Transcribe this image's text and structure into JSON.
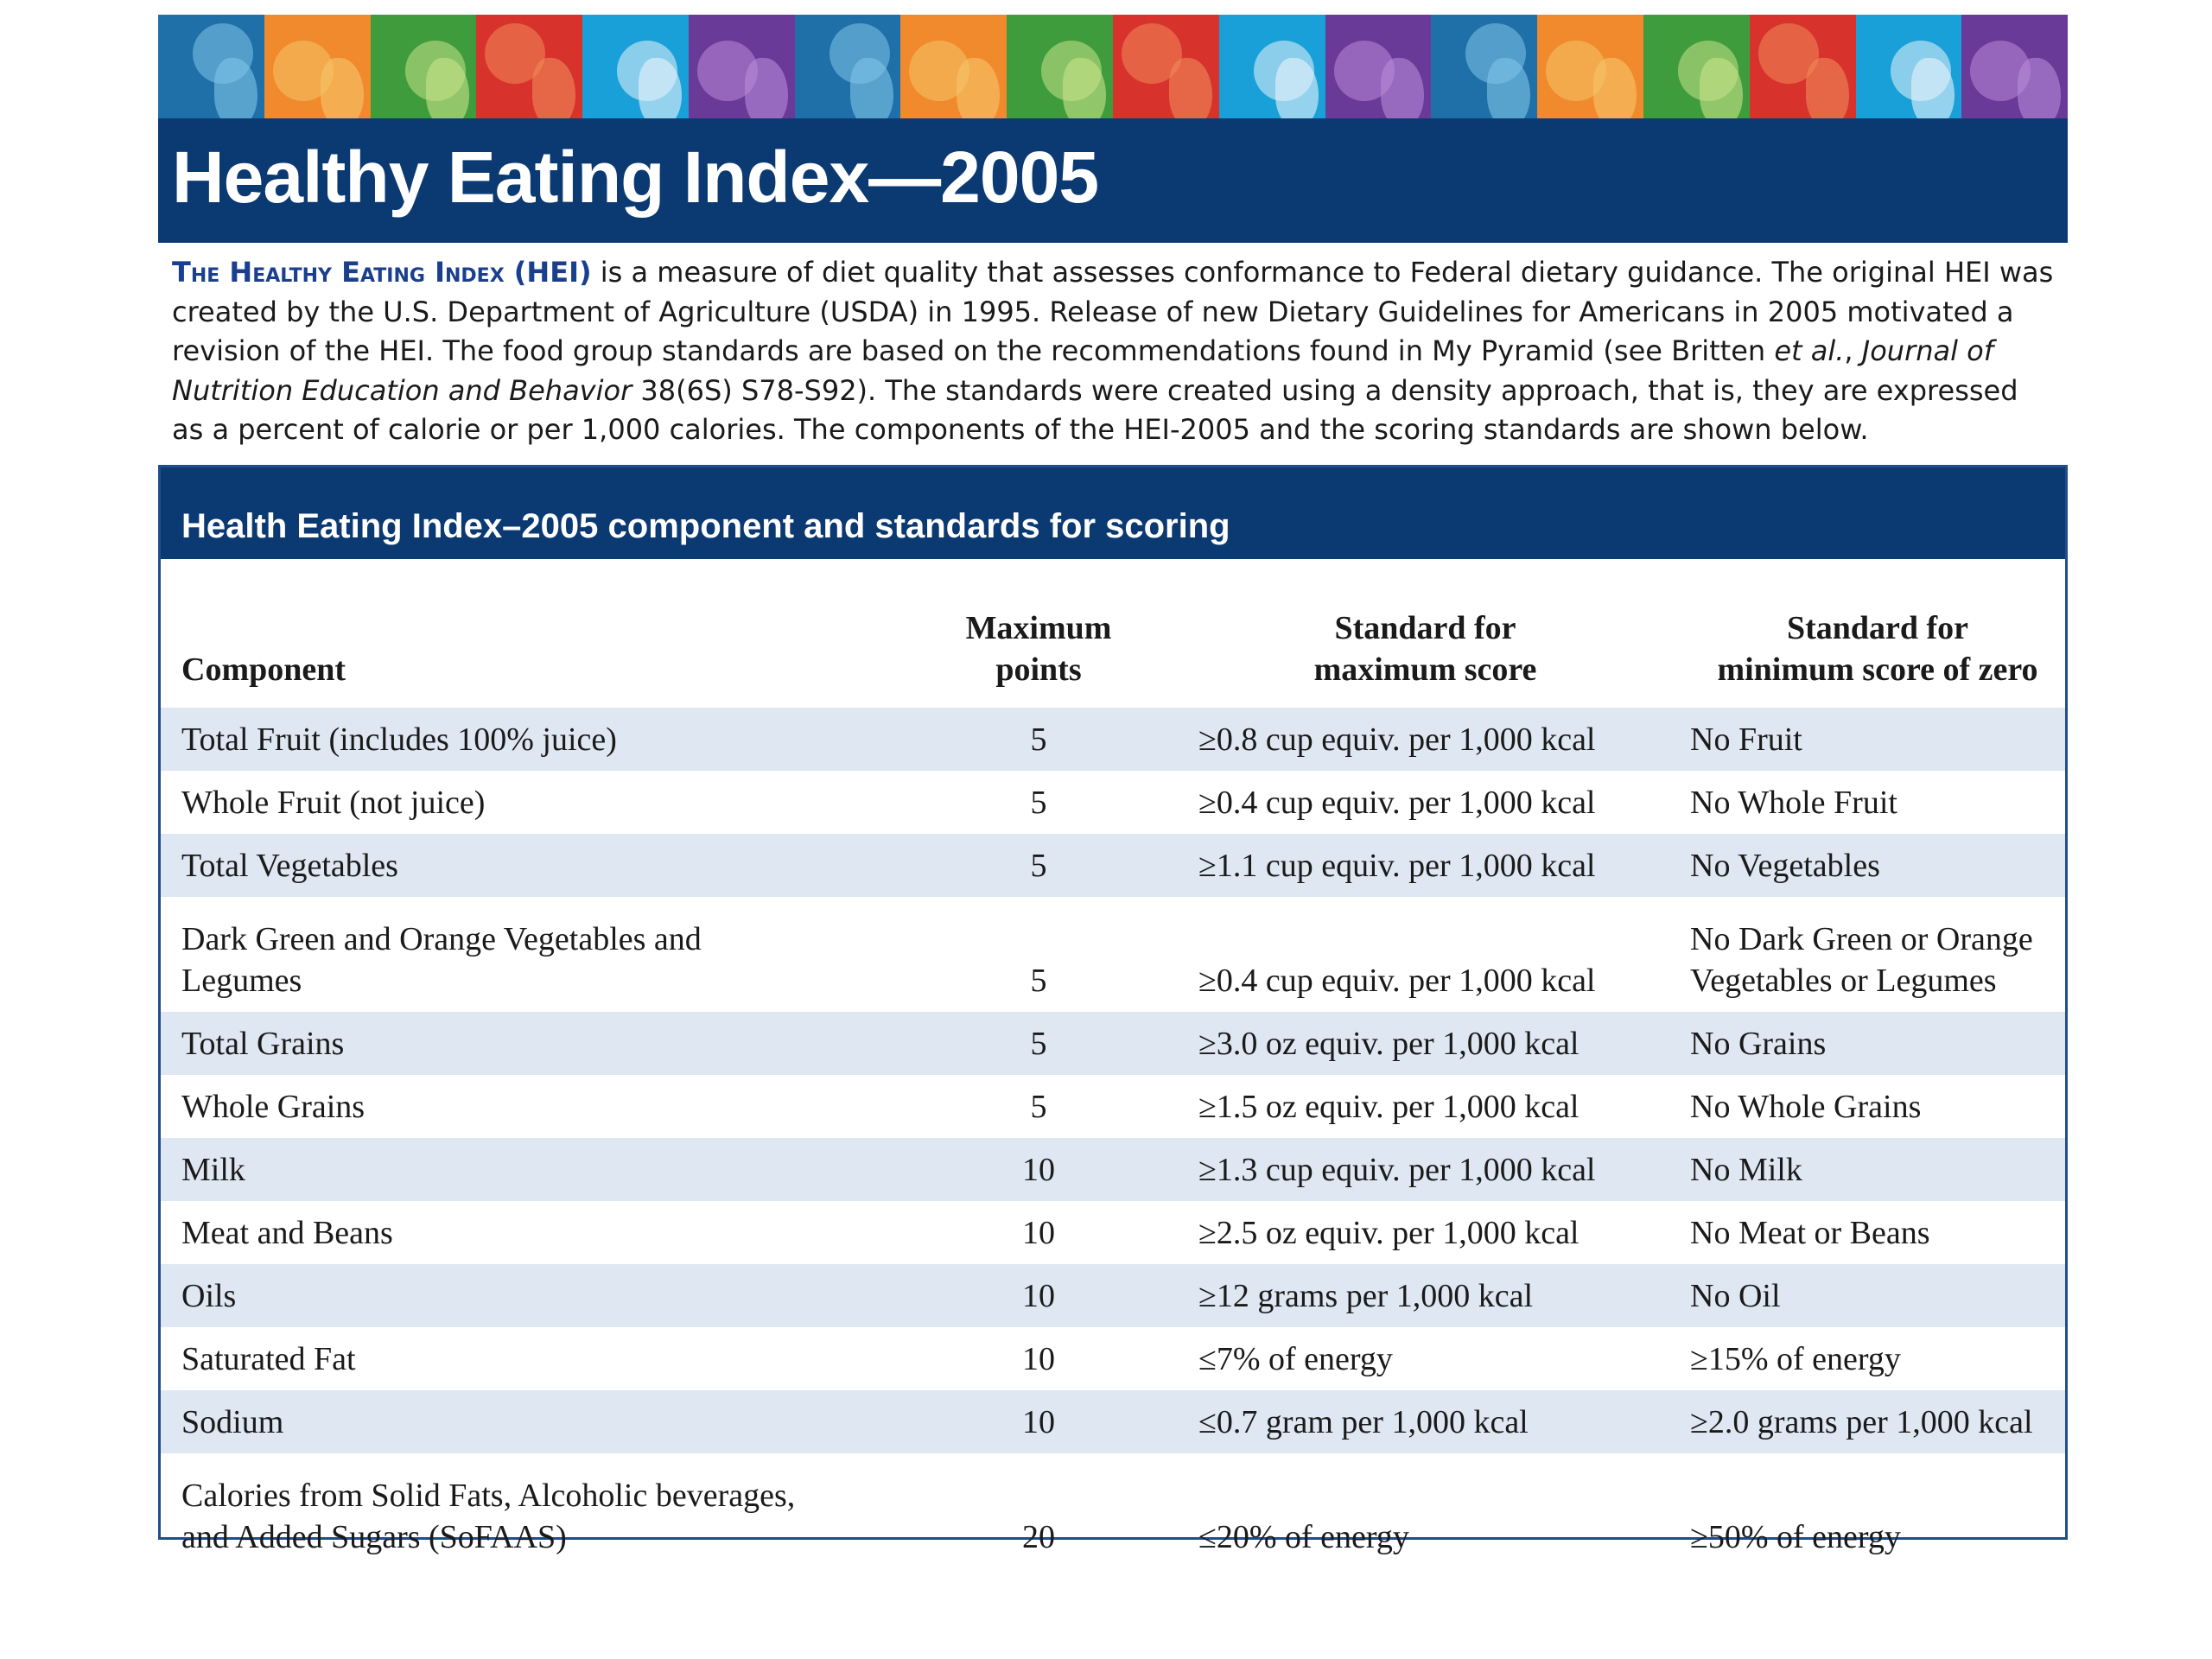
{
  "banner": {
    "tiles": [
      {
        "icon": "child-silhouette-icon",
        "bg": "#1f6fa8",
        "fg": "#7fc4e8"
      },
      {
        "icon": "bread-icon",
        "bg": "#f08a2c",
        "fg": "#f6c46a"
      },
      {
        "icon": "mushroom-icon",
        "bg": "#3f9c3c",
        "fg": "#c9e38a"
      },
      {
        "icon": "strawberry-icon",
        "bg": "#d8322c",
        "fg": "#f08a5a"
      },
      {
        "icon": "milk-glass-icon",
        "bg": "#1aa0d8",
        "fg": "#e8f4fb"
      },
      {
        "icon": "stethoscope-icon",
        "bg": "#6a3a98",
        "fg": "#b88ad8"
      },
      {
        "icon": "child-silhouette-icon",
        "bg": "#1f6fa8",
        "fg": "#7fc4e8"
      },
      {
        "icon": "bread-icon",
        "bg": "#f08a2c",
        "fg": "#f6c46a"
      },
      {
        "icon": "mushroom-icon",
        "bg": "#3f9c3c",
        "fg": "#c9e38a"
      },
      {
        "icon": "strawberry-icon",
        "bg": "#d8322c",
        "fg": "#f08a5a"
      },
      {
        "icon": "milk-glass-icon",
        "bg": "#1aa0d8",
        "fg": "#e8f4fb"
      },
      {
        "icon": "stethoscope-icon",
        "bg": "#6a3a98",
        "fg": "#b88ad8"
      },
      {
        "icon": "child-silhouette-icon",
        "bg": "#1f6fa8",
        "fg": "#7fc4e8"
      },
      {
        "icon": "bread-icon",
        "bg": "#f08a2c",
        "fg": "#f6c46a"
      },
      {
        "icon": "mushroom-icon",
        "bg": "#3f9c3c",
        "fg": "#c9e38a"
      },
      {
        "icon": "strawberry-icon",
        "bg": "#d8322c",
        "fg": "#f08a5a"
      },
      {
        "icon": "milk-glass-icon",
        "bg": "#1aa0d8",
        "fg": "#e8f4fb"
      },
      {
        "icon": "stethoscope-icon",
        "bg": "#6a3a98",
        "fg": "#b88ad8"
      }
    ]
  },
  "title": "Healthy Eating Index—2005",
  "intro": {
    "lead": "The Healthy Eating Index (HEI)",
    "part1": " is a measure of diet quality that assesses conformance to Federal dietary guidance. The original HEI was created by the U.S. Department of Agriculture (USDA) in 1995. Release of new Dietary Guidelines for Americans in 2005 motivated a revision of the HEI. The food group standards are based on the recommendations found in My Pyramid (see Britten ",
    "etal": "et al.",
    "sep": ", ",
    "journal": "Journal of Nutrition Education and Behavior",
    "part2": " 38(6S) S78-S92). The standards were created using a density approach, that is, they are expressed as a percent of calorie or per 1,000 calories. The components of the HEI-2005 and the scoring standards are shown below."
  },
  "table": {
    "caption": "Health Eating Index–2005 component and standards for scoring",
    "headers": {
      "component": "Component",
      "max_points_1": "Maximum",
      "max_points_2": "points",
      "std_max_1": "Standard for",
      "std_max_2": "maximum score",
      "std_min_1": "Standard for",
      "std_min_2": "minimum score of zero"
    },
    "rows": [
      {
        "component": "Total Fruit (includes 100% juice)",
        "points": "5",
        "max_std": "≥0.8 cup equiv. per 1,000 kcal",
        "min_std": "No Fruit"
      },
      {
        "component": "Whole Fruit (not juice)",
        "points": "5",
        "max_std": "≥0.4 cup equiv. per 1,000 kcal",
        "min_std": "No Whole Fruit"
      },
      {
        "component": "Total Vegetables",
        "points": "5",
        "max_std": "≥1.1 cup equiv. per 1,000 kcal",
        "min_std": "No Vegetables"
      },
      {
        "component": "Dark Green and Orange Vegetables and Legumes",
        "points": "5",
        "max_std": "≥0.4 cup equiv. per 1,000 kcal",
        "min_std": "No Dark Green or Orange Vegetables or Legumes"
      },
      {
        "component": "Total Grains",
        "points": "5",
        "max_std": "≥3.0 oz equiv. per 1,000 kcal",
        "min_std": "No Grains"
      },
      {
        "component": "Whole Grains",
        "points": "5",
        "max_std": "≥1.5 oz equiv. per 1,000 kcal",
        "min_std": "No Whole Grains"
      },
      {
        "component": "Milk",
        "points": "10",
        "max_std": "≥1.3 cup equiv. per 1,000 kcal",
        "min_std": "No Milk"
      },
      {
        "component": "Meat and Beans",
        "points": "10",
        "max_std": "≥2.5 oz equiv. per 1,000 kcal",
        "min_std": "No Meat or Beans"
      },
      {
        "component": "Oils",
        "points": "10",
        "max_std": "≥12 grams per 1,000 kcal",
        "min_std": "No Oil"
      },
      {
        "component": "Saturated Fat",
        "points": "10",
        "max_std": "≤7% of energy",
        "min_std": "≥15% of energy"
      },
      {
        "component": "Sodium",
        "points": "10",
        "max_std": "≤0.7 gram per 1,000 kcal",
        "min_std": "≥2.0 grams per 1,000 kcal"
      },
      {
        "component": "Calories from Solid Fats, Alcoholic beverages, and Added Sugars (SoFAAS)",
        "points": "20",
        "max_std": "≤20% of energy",
        "min_std": "≥50% of energy"
      }
    ]
  }
}
